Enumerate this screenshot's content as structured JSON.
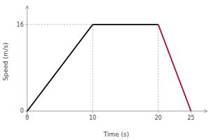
{
  "chart_data": {
    "type": "line",
    "xlabel": "Time (s)",
    "ylabel": "Speed (m/s)",
    "x": [
      0,
      10,
      20,
      25
    ],
    "values": [
      0,
      16,
      16,
      0
    ],
    "colors": [
      "black",
      "black",
      "#b0003a"
    ],
    "xlim": [
      -0.3,
      27.5
    ],
    "ylim": [
      -1.2,
      19.5
    ],
    "xticks": [
      0,
      10,
      20,
      25
    ],
    "yticks": [
      0,
      16
    ],
    "reference_lines": {
      "x": [
        10,
        20
      ],
      "y": 16,
      "color": "#aaaaaa",
      "line_style": "dotted"
    }
  }
}
